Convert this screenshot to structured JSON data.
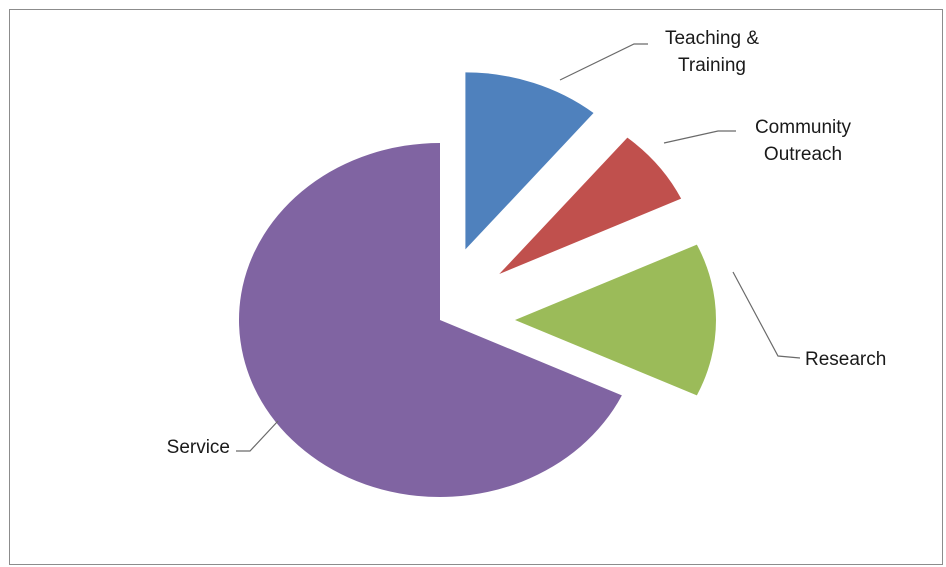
{
  "chart_data": {
    "type": "pie",
    "exploded": true,
    "slices": [
      {
        "label": "Teaching & Training",
        "value": 11,
        "color": "#4f81bd"
      },
      {
        "label": "Community Outreach",
        "value": 7,
        "color": "#c0504d"
      },
      {
        "label": "Research",
        "value": 14,
        "color": "#9bbb59"
      },
      {
        "label": "Service",
        "value": 68,
        "color": "#8064a2"
      }
    ]
  }
}
